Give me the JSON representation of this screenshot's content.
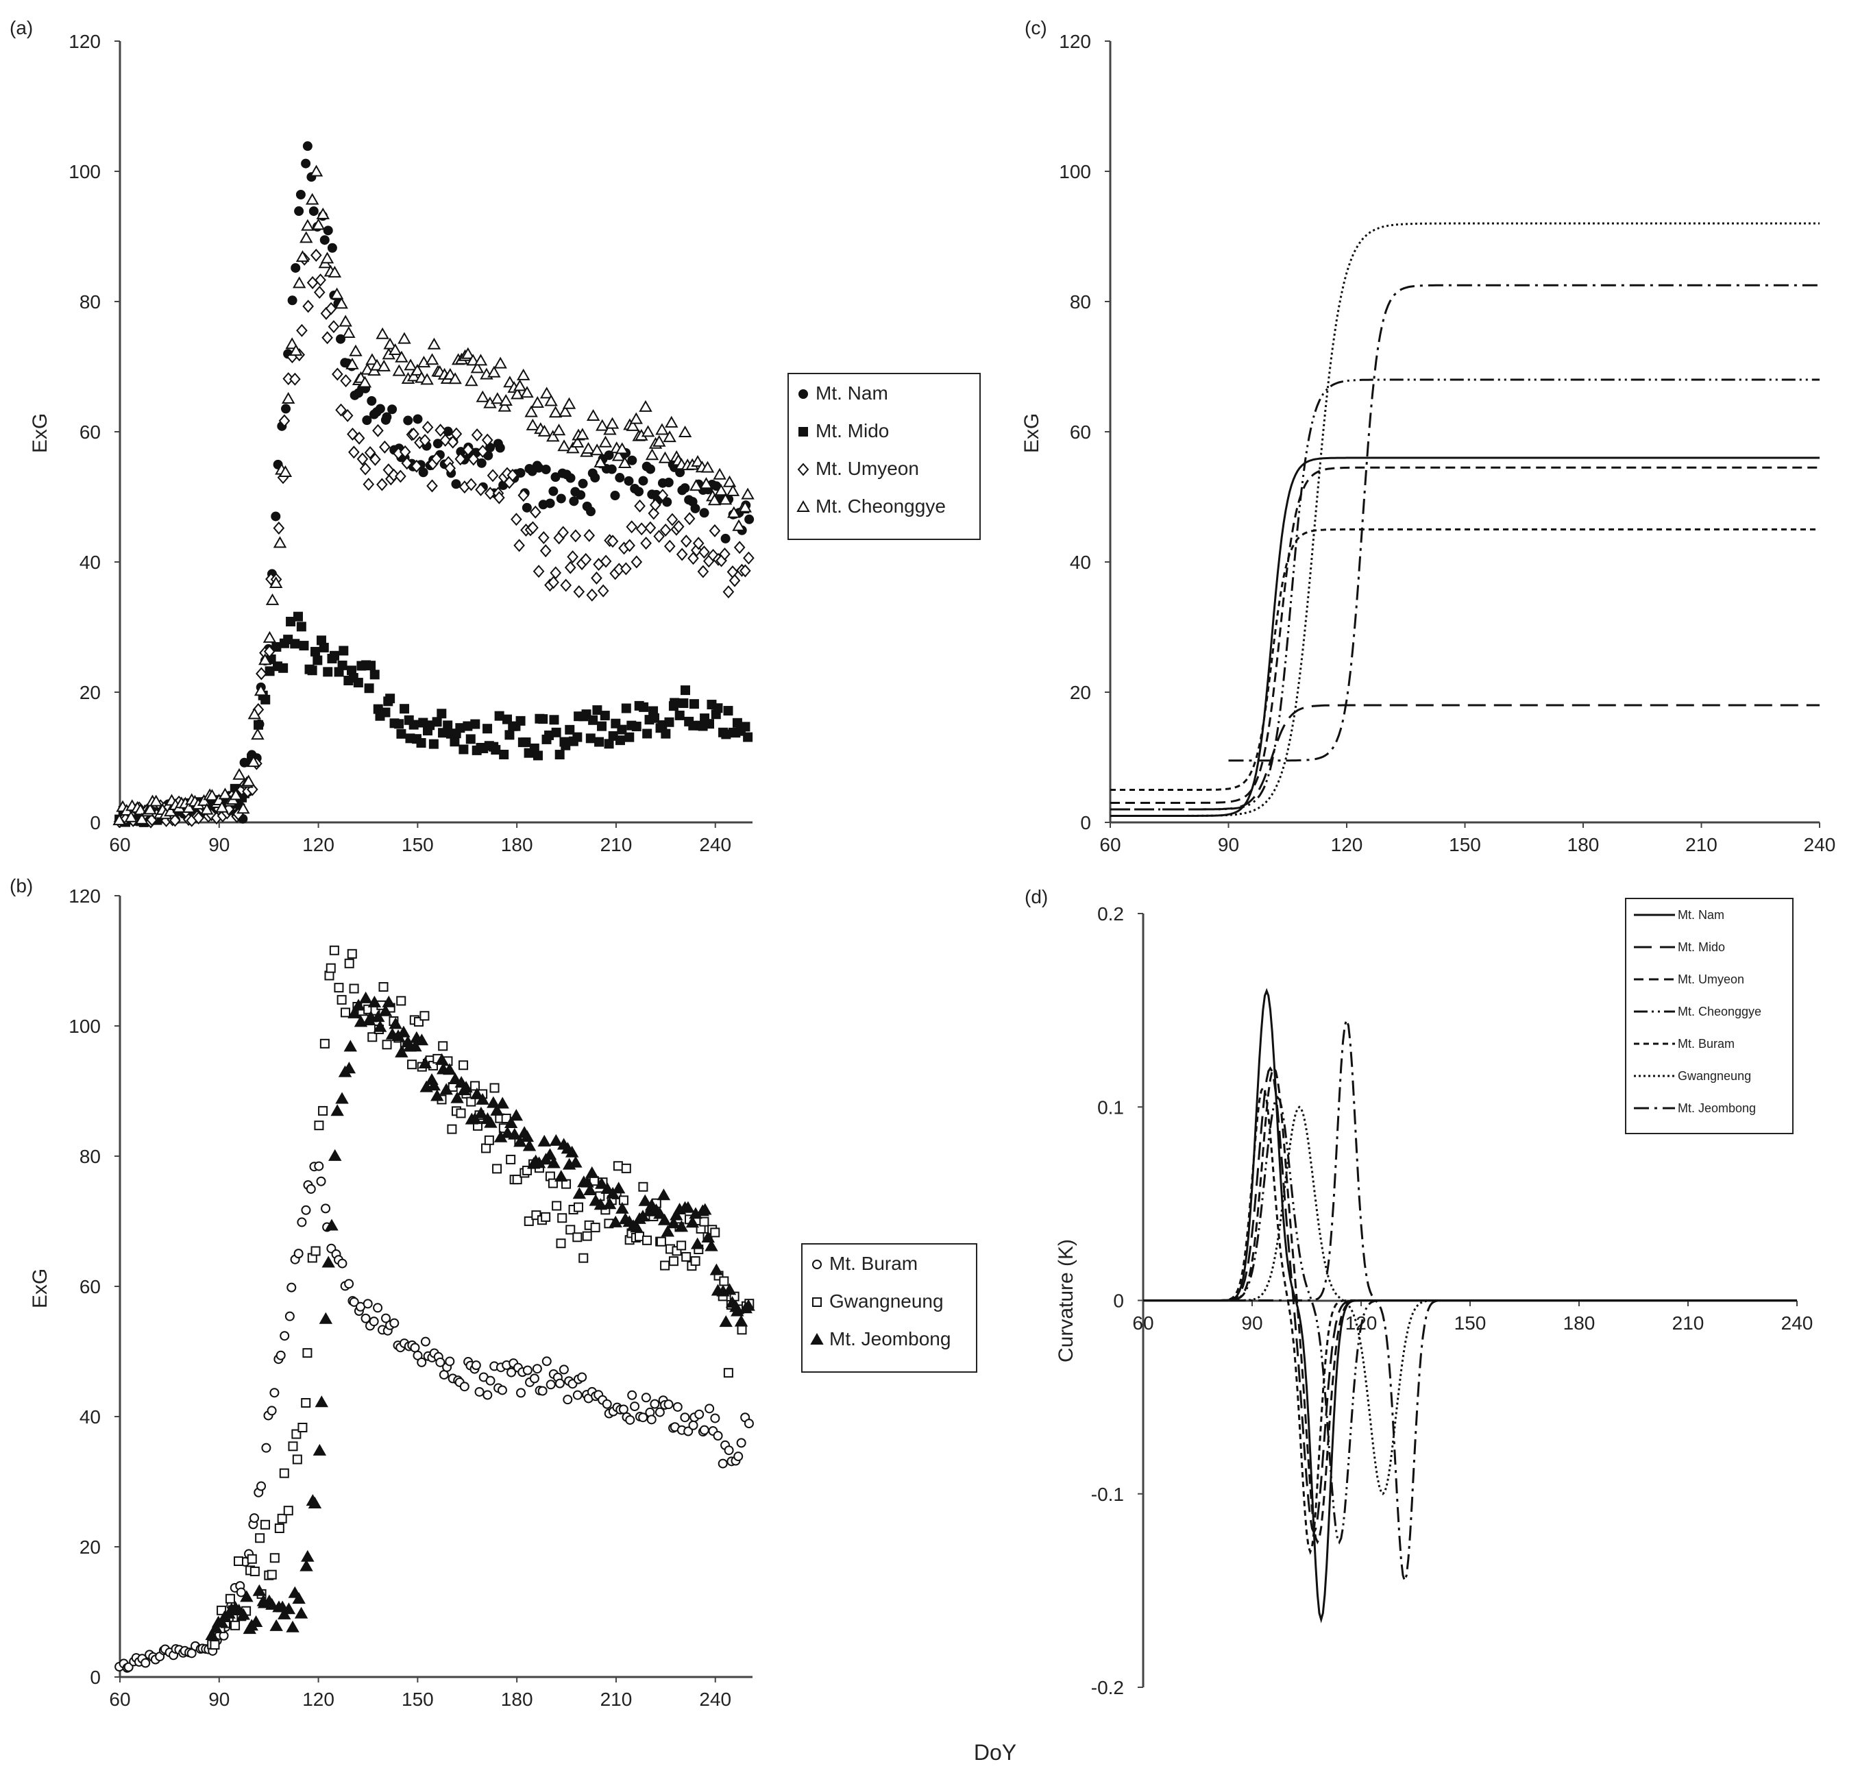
{
  "figure": {
    "shared_xlabel": "DoY"
  },
  "chart_data": [
    {
      "id": "a",
      "panel_label": "(a)",
      "type": "scatter",
      "title": "",
      "xlabel": "",
      "ylabel": "ExG",
      "xlim": [
        60,
        250
      ],
      "ylim": [
        0,
        120
      ],
      "xticks": [
        "60",
        "90",
        "120",
        "150",
        "180",
        "210",
        "240"
      ],
      "yticks": [
        "0",
        "20",
        "40",
        "60",
        "80",
        "100",
        "120"
      ],
      "legend_position": "right",
      "series": [
        {
          "name": "Mt. Nam",
          "marker": "circle-filled",
          "knots": [
            [
              60,
              1
            ],
            [
              70,
              1
            ],
            [
              80,
              2
            ],
            [
              90,
              3
            ],
            [
              97,
              4
            ],
            [
              100,
              8
            ],
            [
              103,
              18
            ],
            [
              106,
              35
            ],
            [
              109,
              60
            ],
            [
              112,
              80
            ],
            [
              115,
              96
            ],
            [
              117,
              102
            ],
            [
              120,
              95
            ],
            [
              124,
              85
            ],
            [
              128,
              72
            ],
            [
              132,
              66
            ],
            [
              140,
              60
            ],
            [
              150,
              58
            ],
            [
              160,
              56
            ],
            [
              170,
              55
            ],
            [
              180,
              53
            ],
            [
              190,
              50
            ],
            [
              200,
              50
            ],
            [
              210,
              54
            ],
            [
              220,
              53
            ],
            [
              230,
              52
            ],
            [
              240,
              48
            ],
            [
              250,
              46
            ]
          ],
          "noise": 4,
          "seed": 11
        },
        {
          "name": "Mt. Mido",
          "marker": "square-filled",
          "knots": [
            [
              60,
              1
            ],
            [
              70,
              1
            ],
            [
              80,
              2
            ],
            [
              90,
              3
            ],
            [
              97,
              5
            ],
            [
              100,
              9
            ],
            [
              103,
              17
            ],
            [
              107,
              24
            ],
            [
              110,
              26
            ],
            [
              113,
              30
            ],
            [
              116,
              27
            ],
            [
              120,
              25
            ],
            [
              125,
              25
            ],
            [
              130,
              24
            ],
            [
              135,
              22
            ],
            [
              140,
              18
            ],
            [
              150,
              15
            ],
            [
              160,
              14
            ],
            [
              170,
              14
            ],
            [
              180,
              13
            ],
            [
              190,
              13
            ],
            [
              200,
              14
            ],
            [
              210,
              15
            ],
            [
              220,
              15
            ],
            [
              230,
              18
            ],
            [
              240,
              17
            ],
            [
              250,
              15
            ]
          ],
          "noise": 3,
          "seed": 22
        },
        {
          "name": "Mt. Umyeon",
          "marker": "diamond-open",
          "knots": [
            [
              60,
              1
            ],
            [
              70,
              1
            ],
            [
              80,
              2
            ],
            [
              90,
              2
            ],
            [
              97,
              4
            ],
            [
              100,
              9
            ],
            [
              104,
              22
            ],
            [
              108,
              45
            ],
            [
              111,
              65
            ],
            [
              115,
              80
            ],
            [
              118,
              86
            ],
            [
              122,
              80
            ],
            [
              126,
              70
            ],
            [
              130,
              58
            ],
            [
              135,
              56
            ],
            [
              140,
              57
            ],
            [
              150,
              57
            ],
            [
              160,
              55
            ],
            [
              170,
              55
            ],
            [
              180,
              48
            ],
            [
              190,
              41
            ],
            [
              200,
              40
            ],
            [
              210,
              38
            ],
            [
              220,
              47
            ],
            [
              230,
              45
            ],
            [
              240,
              40
            ],
            [
              250,
              38
            ]
          ],
          "noise": 5,
          "seed": 33
        },
        {
          "name": "Mt. Cheonggye",
          "marker": "triangle-open",
          "knots": [
            [
              60,
              1
            ],
            [
              70,
              2
            ],
            [
              80,
              3
            ],
            [
              90,
              3
            ],
            [
              97,
              5
            ],
            [
              100,
              10
            ],
            [
              104,
              22
            ],
            [
              108,
              45
            ],
            [
              112,
              70
            ],
            [
              116,
              90
            ],
            [
              119,
              96
            ],
            [
              123,
              85
            ],
            [
              127,
              76
            ],
            [
              132,
              71
            ],
            [
              140,
              72
            ],
            [
              150,
              71
            ],
            [
              160,
              70
            ],
            [
              170,
              68
            ],
            [
              180,
              66
            ],
            [
              190,
              63
            ],
            [
              200,
              59
            ],
            [
              210,
              58
            ],
            [
              220,
              60
            ],
            [
              230,
              57
            ],
            [
              240,
              50
            ],
            [
              250,
              47
            ]
          ],
          "noise": 4,
          "seed": 44
        }
      ]
    },
    {
      "id": "b",
      "panel_label": "(b)",
      "type": "scatter",
      "title": "",
      "xlabel": "",
      "ylabel": "ExG",
      "xlim": [
        60,
        250
      ],
      "ylim": [
        0,
        120
      ],
      "xticks": [
        "60",
        "90",
        "120",
        "150",
        "180",
        "210",
        "240"
      ],
      "yticks": [
        "0",
        "20",
        "40",
        "60",
        "80",
        "100",
        "120"
      ],
      "legend_position": "right",
      "series": [
        {
          "name": "Mt. Buram",
          "marker": "circle-open",
          "knots": [
            [
              60,
              2
            ],
            [
              70,
              3
            ],
            [
              80,
              4
            ],
            [
              88,
              4
            ],
            [
              92,
              8
            ],
            [
              96,
              13
            ],
            [
              100,
              22
            ],
            [
              104,
              35
            ],
            [
              108,
              48
            ],
            [
              112,
              60
            ],
            [
              116,
              72
            ],
            [
              119,
              80
            ],
            [
              122,
              72
            ],
            [
              125,
              64
            ],
            [
              130,
              60
            ],
            [
              135,
              56
            ],
            [
              140,
              54
            ],
            [
              150,
              50
            ],
            [
              160,
              47
            ],
            [
              170,
              45
            ],
            [
              180,
              46
            ],
            [
              190,
              46
            ],
            [
              200,
              44
            ],
            [
              210,
              42
            ],
            [
              220,
              41
            ],
            [
              230,
              40
            ],
            [
              238,
              40
            ],
            [
              243,
              34
            ],
            [
              247,
              36
            ],
            [
              250,
              40
            ]
          ],
          "noise": 2.5,
          "seed": 55
        },
        {
          "name": "Gwangneung",
          "marker": "square-open",
          "knots": [
            [
              88,
              6
            ],
            [
              92,
              10
            ],
            [
              96,
              14
            ],
            [
              100,
              15
            ],
            [
              104,
              18
            ],
            [
              108,
              22
            ],
            [
              112,
              30
            ],
            [
              115,
              40
            ],
            [
              118,
              60
            ],
            [
              121,
              90
            ],
            [
              123,
              110
            ],
            [
              126,
              104
            ],
            [
              130,
              108
            ],
            [
              140,
              100
            ],
            [
              150,
              98
            ],
            [
              160,
              90
            ],
            [
              170,
              88
            ],
            [
              180,
              78
            ],
            [
              190,
              72
            ],
            [
              200,
              70
            ],
            [
              210,
              75
            ],
            [
              220,
              70
            ],
            [
              230,
              68
            ],
            [
              240,
              70
            ],
            [
              244,
              50
            ],
            [
              248,
              55
            ],
            [
              250,
              62
            ]
          ],
          "noise": 6,
          "seed": 66
        },
        {
          "name": "Mt. Jeombong",
          "marker": "triangle-filled",
          "knots": [
            [
              88,
              7
            ],
            [
              95,
              10
            ],
            [
              100,
              11
            ],
            [
              105,
              11
            ],
            [
              110,
              9
            ],
            [
              114,
              10
            ],
            [
              117,
              18
            ],
            [
              120,
              35
            ],
            [
              123,
              62
            ],
            [
              126,
              85
            ],
            [
              130,
              100
            ],
            [
              140,
              102
            ],
            [
              150,
              95
            ],
            [
              160,
              90
            ],
            [
              170,
              88
            ],
            [
              180,
              84
            ],
            [
              190,
              80
            ],
            [
              200,
              76
            ],
            [
              210,
              72
            ],
            [
              220,
              71
            ],
            [
              230,
              70
            ],
            [
              238,
              69
            ],
            [
              242,
              58
            ],
            [
              246,
              55
            ],
            [
              250,
              57
            ]
          ],
          "noise": 3.5,
          "seed": 77
        }
      ]
    },
    {
      "id": "c",
      "panel_label": "(c)",
      "type": "line",
      "title": "",
      "xlabel": "",
      "ylabel": "ExG",
      "xlim": [
        60,
        240
      ],
      "ylim": [
        0,
        120
      ],
      "xticks": [
        "60",
        "90",
        "120",
        "150",
        "180",
        "210",
        "240"
      ],
      "yticks": [
        "0",
        "20",
        "40",
        "60",
        "80",
        "100",
        "120"
      ],
      "series": [
        {
          "name": "Mt. Nam",
          "style": "solid",
          "base": 1,
          "top": 56,
          "mid": 101,
          "k": 0.5
        },
        {
          "name": "Mt. Mido",
          "style": "long-dash",
          "base": 2,
          "top": 18,
          "mid": 101,
          "k": 0.45
        },
        {
          "name": "Mt. Umyeon",
          "style": "dash",
          "base": 3,
          "top": 54.5,
          "mid": 103,
          "k": 0.45
        },
        {
          "name": "Mt. Cheonggye",
          "style": "dash-dot-dot",
          "base": 2,
          "top": 68,
          "mid": 106,
          "k": 0.42
        },
        {
          "name": "Mt. Buram",
          "style": "short-dash",
          "base": 5,
          "top": 45,
          "mid": 101,
          "k": 0.5
        },
        {
          "name": "Gwangneung",
          "style": "dotted",
          "base": 1,
          "top": 92,
          "mid": 112,
          "k": 0.3
        },
        {
          "name": "Mt. Jeombong",
          "style": "dash-dot",
          "base": 9.5,
          "top": 82.5,
          "mid": 124,
          "k": 0.48,
          "xstart": 90
        }
      ]
    },
    {
      "id": "d",
      "panel_label": "(d)",
      "type": "line",
      "title": "",
      "xlabel": "",
      "ylabel": "Curvature (K)",
      "xlim": [
        60,
        240
      ],
      "ylim": [
        -0.2,
        0.2
      ],
      "xticks": [
        "60",
        "90",
        "120",
        "150",
        "180",
        "210",
        "240"
      ],
      "yticks": [
        "-0.2",
        "-0.1",
        "0",
        "0.1",
        "0.2"
      ],
      "legend_position": "top-right",
      "series": [
        {
          "name": "Mt. Nam",
          "style": "solid",
          "pos": [
            94,
            0.16,
            4
          ],
          "neg": [
            109,
            -0.165,
            3.5
          ]
        },
        {
          "name": "Mt. Mido",
          "style": "long-dash",
          "pos": [
            95,
            0.12,
            4.5
          ],
          "neg": [
            107,
            -0.12,
            4
          ]
        },
        {
          "name": "Mt. Umyeon",
          "style": "dash",
          "pos": [
            96,
            0.12,
            4.5
          ],
          "neg": [
            108,
            -0.125,
            4
          ]
        },
        {
          "name": "Mt. Cheonggye",
          "style": "dash-dot-dot",
          "pos": [
            97,
            0.105,
            5
          ],
          "neg": [
            114,
            -0.125,
            4
          ]
        },
        {
          "name": "Mt. Buram",
          "style": "short-dash",
          "pos": [
            93,
            0.11,
            4
          ],
          "neg": [
            106,
            -0.13,
            3.5
          ]
        },
        {
          "name": "Gwangneung",
          "style": "dotted",
          "pos": [
            103,
            0.1,
            5.5
          ],
          "neg": [
            126,
            -0.1,
            5
          ]
        },
        {
          "name": "Mt. Jeombong",
          "style": "dash-dot",
          "pos": [
            116,
            0.145,
            3.5
          ],
          "neg": [
            132,
            -0.145,
            3.5
          ]
        }
      ]
    }
  ]
}
